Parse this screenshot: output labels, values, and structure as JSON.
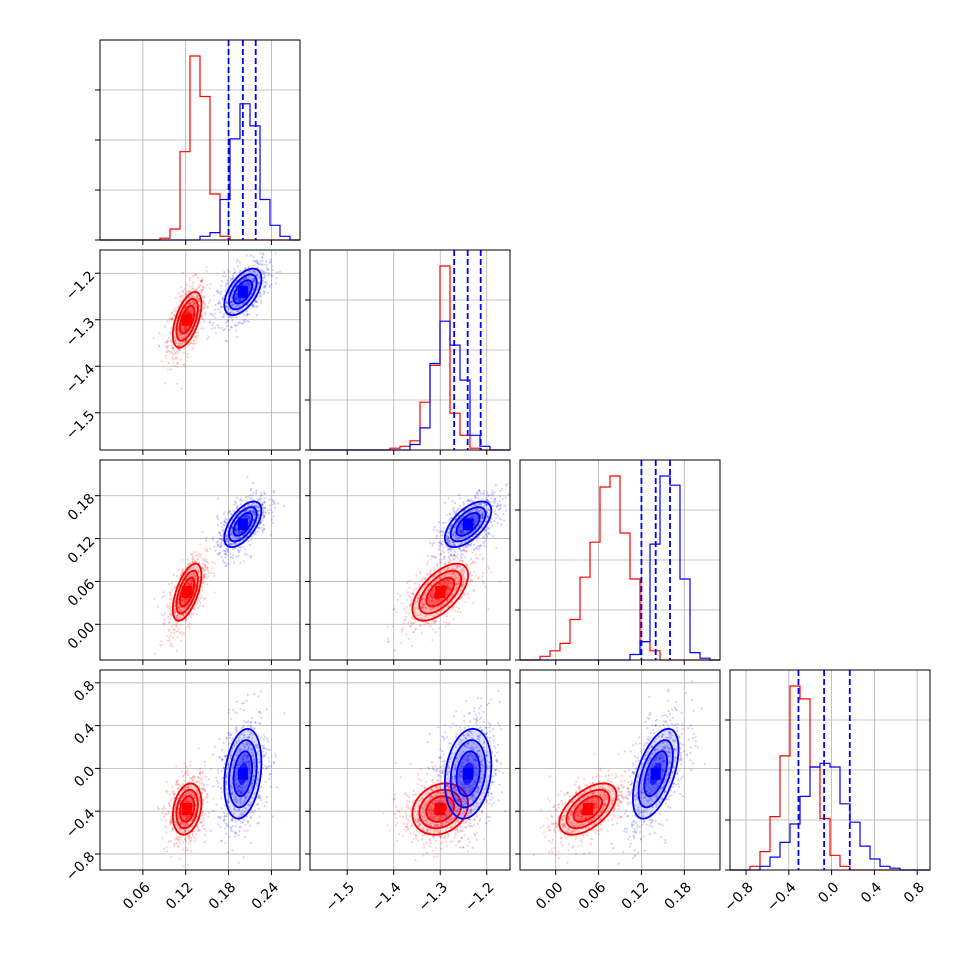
{
  "chart_data": {
    "type": "corner",
    "description_colors": {
      "red": "#ff0000",
      "blue": "#0000ff"
    },
    "grid": true,
    "parameters": [
      {
        "ticks": [
          "0.06",
          "0.12",
          "0.18",
          "0.24"
        ],
        "tick_values": [
          0.06,
          0.12,
          0.18,
          0.24
        ],
        "range": [
          0.0,
          0.28
        ]
      },
      {
        "ticks": [
          "−1.5",
          "−1.4",
          "−1.3",
          "−1.2"
        ],
        "tick_values": [
          -1.5,
          -1.4,
          -1.3,
          -1.2
        ],
        "range": [
          -1.58,
          -1.15
        ]
      },
      {
        "ticks": [
          "0.00",
          "0.06",
          "0.12",
          "0.18"
        ],
        "tick_values": [
          0.0,
          0.06,
          0.12,
          0.18
        ],
        "range": [
          -0.05,
          0.23
        ]
      },
      {
        "ticks": [
          "−0.8",
          "−0.4",
          "0.0",
          "0.4",
          "0.8"
        ],
        "tick_values": [
          -0.8,
          -0.4,
          0.0,
          0.4,
          0.8
        ],
        "range": [
          -0.95,
          0.92
        ]
      }
    ],
    "series": [
      {
        "color": "#ff0000",
        "centers": [
          0.122,
          -1.3,
          0.045,
          -0.38
        ],
        "stds": [
          0.01,
          0.03,
          0.02,
          0.12
        ],
        "histograms": [
          [
            0,
            0,
            0,
            0,
            0,
            0,
            0.01,
            0.06,
            0.48,
            1.0,
            0.78,
            0.25,
            0.02,
            0,
            0,
            0,
            0,
            0,
            0,
            0
          ],
          [
            0,
            0,
            0,
            0,
            0,
            0,
            0,
            0,
            0.01,
            0.02,
            0.05,
            0.26,
            0.46,
            1.0,
            0.2,
            0.08,
            0.01,
            0,
            0,
            0
          ],
          [
            0,
            0,
            0.02,
            0.05,
            0.09,
            0.22,
            0.45,
            0.64,
            0.94,
            1.0,
            0.69,
            0.44,
            0.1,
            0.05,
            0,
            0,
            0,
            0,
            0,
            0
          ],
          [
            0,
            0,
            0.02,
            0.1,
            0.29,
            0.62,
            1.0,
            0.93,
            0.56,
            0.28,
            0.08,
            0.02,
            0,
            0,
            0,
            0,
            0,
            0,
            0,
            0
          ]
        ]
      },
      {
        "color": "#0000ff",
        "centers": [
          0.2,
          -1.24,
          0.14,
          -0.05
        ],
        "stds": [
          0.013,
          0.025,
          0.016,
          0.21
        ],
        "histograms": [
          [
            0,
            0,
            0,
            0,
            0,
            0,
            0,
            0,
            0,
            0,
            0.02,
            0.04,
            0.22,
            0.55,
            0.74,
            0.62,
            0.22,
            0.08,
            0.02,
            0
          ],
          [
            0,
            0,
            0,
            0,
            0,
            0,
            0,
            0,
            0,
            0,
            0.03,
            0.12,
            0.47,
            0.7,
            0.57,
            0.38,
            0.08,
            0.02,
            0,
            0
          ],
          [
            0,
            0,
            0,
            0,
            0,
            0,
            0,
            0,
            0,
            0,
            0,
            0.03,
            0.1,
            0.63,
            1.0,
            0.95,
            0.44,
            0.04,
            0.01,
            0
          ],
          [
            0,
            0,
            0,
            0.02,
            0.07,
            0.15,
            0.25,
            0.4,
            0.56,
            0.58,
            0.56,
            0.36,
            0.26,
            0.13,
            0.06,
            0.02,
            0.01,
            0,
            0,
            0
          ]
        ]
      }
    ],
    "quantile_lines": [
      [
        0.18,
        0.2,
        0.218
      ],
      [
        -1.27,
        -1.241,
        -1.213
      ],
      [
        0.12,
        0.14,
        0.16
      ],
      [
        -0.31,
        -0.07,
        0.17
      ]
    ],
    "panel_correlations": {
      "1-0": 0.55,
      "2-0": 0.6,
      "3-0": 0.25,
      "2-1": 0.6,
      "3-1": 0.2,
      "3-2": 0.55
    }
  }
}
